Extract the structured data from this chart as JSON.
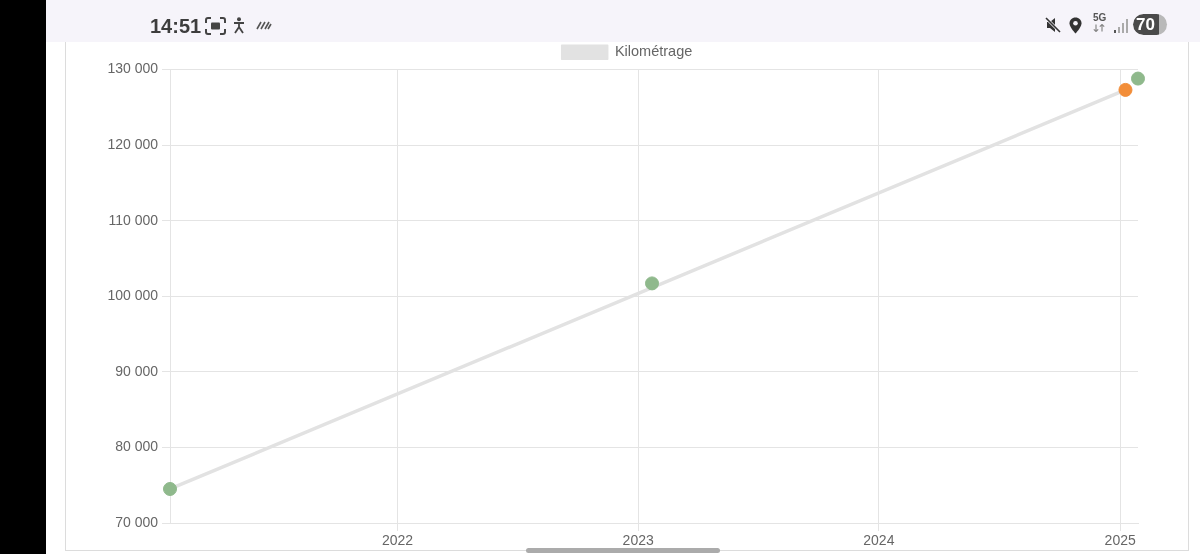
{
  "chart_data": {
    "type": "line",
    "xlim": [
      "2021-01-21",
      "2025-01-28"
    ],
    "xticks": [
      "2022",
      "2023",
      "2024",
      "2025"
    ],
    "ylim": [
      70000,
      130000
    ],
    "yticks": [
      {
        "value": 70000,
        "label": "70 000"
      },
      {
        "value": 80000,
        "label": "80 000"
      },
      {
        "value": 90000,
        "label": "90 000"
      },
      {
        "value": 100000,
        "label": "100 000"
      },
      {
        "value": 110000,
        "label": "110 000"
      },
      {
        "value": 120000,
        "label": "120 000"
      },
      {
        "value": 130000,
        "label": "130 000"
      }
    ],
    "grid": true,
    "legend": "top",
    "series": [
      {
        "name": "Kilométrage",
        "type": "line",
        "color": "#e2e2e2",
        "marker": "none",
        "x": [
          "2021-01-21",
          "2025-01-09"
        ],
        "values": [
          74500,
          127300
        ]
      },
      {
        "type": "scatter",
        "color": "#8fb98c",
        "marker": "circle",
        "x": [
          "2021-01-21",
          "2023-01-22",
          "2025-01-28"
        ],
        "values": [
          74500,
          101700,
          128800
        ]
      },
      {
        "type": "scatter",
        "color": "#f28d38",
        "marker": "circle",
        "x": [
          "2025-01-09"
        ],
        "values": [
          127300
        ]
      }
    ],
    "annotations": [
      "14:51",
      "5G",
      "70"
    ]
  }
}
